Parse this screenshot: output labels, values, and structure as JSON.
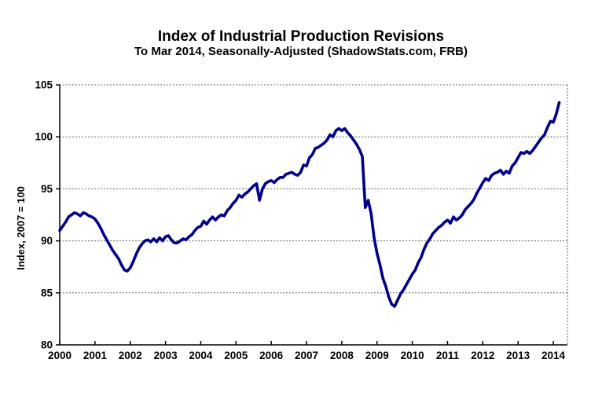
{
  "chart_data": {
    "type": "line",
    "title": "Index of Industrial Production Revisions",
    "subtitle": "To Mar 2014, Seasonally-Adjusted (ShadowStats.com, FRB)",
    "ylabel": "Index, 2007 = 100",
    "xlabel": "",
    "ylim": [
      80,
      105
    ],
    "yticks": [
      80,
      85,
      90,
      95,
      100,
      105
    ],
    "xticks": [
      2000,
      2001,
      2002,
      2003,
      2004,
      2005,
      2006,
      2007,
      2008,
      2009,
      2010,
      2011,
      2012,
      2013,
      2014
    ],
    "x_range": [
      2000,
      2014.4
    ],
    "x_unit": "month",
    "x_start": "2000-01",
    "x_end": "2014-03",
    "grid": "horizontal-dotted",
    "legend": "none",
    "line_color": "#00008B",
    "series": [
      {
        "name": "Index of Industrial Production (SA, 2007 = 100)",
        "values": [
          91.0,
          91.4,
          91.8,
          92.3,
          92.5,
          92.7,
          92.6,
          92.4,
          92.7,
          92.6,
          92.4,
          92.3,
          92.1,
          91.7,
          91.2,
          90.6,
          90.1,
          89.6,
          89.1,
          88.7,
          88.3,
          87.7,
          87.2,
          87.1,
          87.4,
          88.0,
          88.7,
          89.3,
          89.7,
          90.0,
          90.1,
          89.9,
          90.2,
          89.9,
          90.3,
          90.0,
          90.4,
          90.5,
          90.1,
          89.8,
          89.8,
          90.0,
          90.2,
          90.1,
          90.4,
          90.6,
          91.0,
          91.3,
          91.4,
          91.9,
          91.6,
          92.0,
          92.3,
          92.0,
          92.3,
          92.5,
          92.4,
          92.9,
          93.2,
          93.6,
          93.9,
          94.4,
          94.2,
          94.5,
          94.7,
          95.0,
          95.3,
          95.5,
          93.9,
          95.0,
          95.5,
          95.7,
          95.8,
          95.6,
          95.9,
          96.1,
          96.1,
          96.4,
          96.5,
          96.6,
          96.4,
          96.3,
          96.6,
          97.3,
          97.2,
          98.0,
          98.3,
          98.9,
          99.0,
          99.2,
          99.4,
          99.7,
          100.2,
          100.0,
          100.6,
          100.8,
          100.6,
          100.8,
          100.4,
          100.1,
          99.7,
          99.3,
          98.8,
          98.1,
          93.2,
          93.9,
          92.6,
          90.3,
          88.8,
          87.7,
          86.4,
          85.6,
          84.6,
          83.9,
          83.7,
          84.3,
          84.9,
          85.3,
          85.8,
          86.3,
          86.8,
          87.2,
          87.9,
          88.4,
          89.2,
          89.8,
          90.2,
          90.7,
          91.0,
          91.3,
          91.5,
          91.8,
          92.0,
          91.7,
          92.3,
          92.0,
          92.2,
          92.5,
          93.0,
          93.3,
          93.6,
          94.0,
          94.6,
          95.1,
          95.6,
          96.0,
          95.8,
          96.3,
          96.5,
          96.6,
          96.8,
          96.4,
          96.7,
          96.5,
          97.2,
          97.5,
          98.0,
          98.5,
          98.4,
          98.6,
          98.4,
          98.7,
          99.1,
          99.5,
          99.9,
          100.2,
          100.9,
          101.5,
          101.4,
          102.2,
          103.3
        ]
      }
    ]
  }
}
